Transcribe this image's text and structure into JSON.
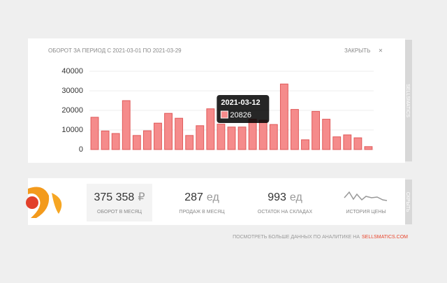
{
  "panel": {
    "title": "ОБОРОТ ЗА ПЕРИОД С 2021-03-01 ПО 2021-03-29",
    "close": "ЗАКРЫТЬ",
    "close_icon": "×",
    "side_label": "SELLSMATICS"
  },
  "chart_data": {
    "type": "bar",
    "color": "#f58b8b",
    "stroke": "#e05a5a",
    "values": [
      16500,
      9500,
      8200,
      25000,
      7200,
      9600,
      13500,
      18500,
      16000,
      7200,
      12200,
      20826,
      13000,
      11500,
      11500,
      15500,
      15000,
      12800,
      33500,
      20500,
      5000,
      19500,
      15500,
      6500,
      7500,
      6000,
      1500
    ],
    "ylim": [
      0,
      40000
    ],
    "yticks": [
      0,
      10000,
      20000,
      30000,
      40000
    ],
    "grid": true,
    "tooltip_label": "2021-03-12",
    "tooltip_index": 11
  },
  "stats": {
    "items": [
      {
        "value": "375 358",
        "unit": "₽",
        "label": "ОБОРОТ В МЕСЯЦ"
      },
      {
        "value": "287",
        "unit": "ед",
        "label": "ПРОДАЖ В МЕСЯЦ"
      },
      {
        "value": "993",
        "unit": "ед",
        "label": "ОСТАТОК НА СКЛАДАХ"
      }
    ],
    "history_label": "ИСТОРИЯ ЦЕНЫ",
    "side_label": "СКРЫТЬ"
  },
  "footer": {
    "text": "ПОСМОТРЕТЬ БОЛЬШЕ ДАННЫХ ПО АНАЛИТИКЕ НА",
    "link": "SELLSMATICS.COM"
  }
}
